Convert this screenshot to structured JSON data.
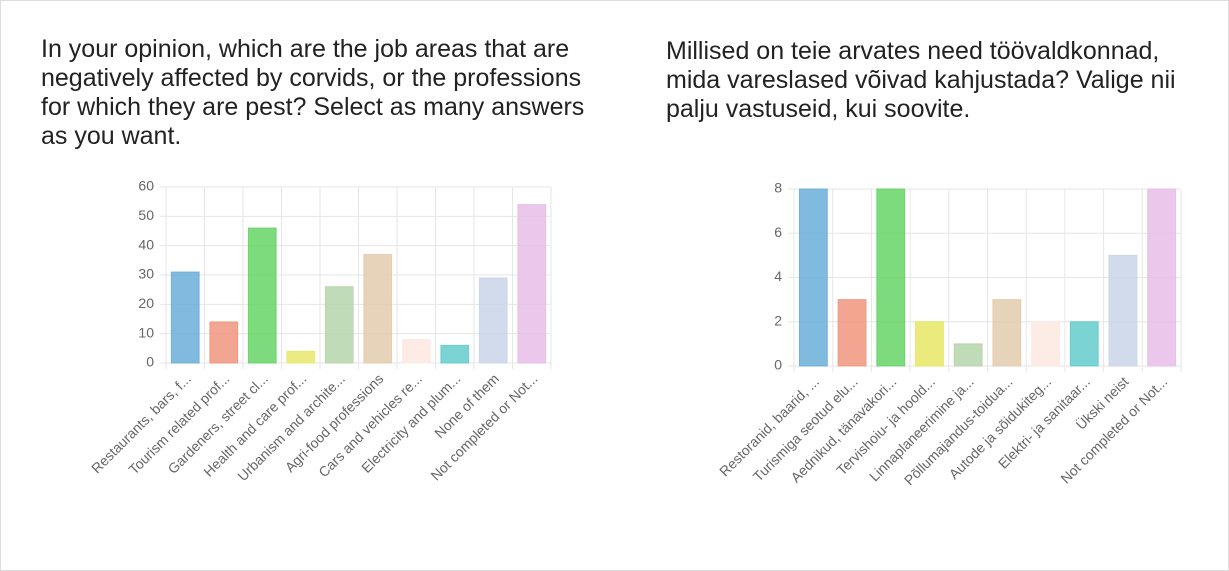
{
  "chart_data": [
    {
      "type": "bar",
      "title": "In your opinion, which are the job areas that are negatively affected by corvids, or the professions for which they are pest? Select as many answers as you want.",
      "categories": [
        "Restaurants, bars, f...",
        "Tourism related prof...",
        "Gardeners, street cl...",
        "Health and care prof...",
        "Urbanism and archite...",
        "Agri-food professions",
        "Cars and vehicles re...",
        "Electricity and plum...",
        "None of them",
        "Not completed or Not..."
      ],
      "values": [
        31,
        14,
        46,
        4,
        26,
        37,
        8,
        6,
        29,
        54
      ],
      "colors": [
        "#6aaed9",
        "#f0957c",
        "#66d366",
        "#e8e86c",
        "#b5d5aa",
        "#e3cbae",
        "#fde9e1",
        "#64cbcb",
        "#c9d5e8",
        "#e7bde7"
      ],
      "ylim": [
        0,
        60
      ],
      "yticks": [
        0,
        10,
        20,
        30,
        40,
        50,
        60
      ],
      "grid": true
    },
    {
      "type": "bar",
      "title": "Millised on teie arvates need töövaldkonnad, mida vareslased võivad kahjustada? Valige nii palju vastuseid, kui soovite.",
      "categories": [
        "Restoranid, baarid, ...",
        "Turismiga seotud elu...",
        "Aednikud, tänavakori...",
        "Tervishoiu- ja hoold...",
        "Linnaplaneerimine ja...",
        "Põllumajandus-toidua...",
        "Autode ja sõidukiteg...",
        "Elektri- ja sanitaar...",
        "Ükski neist",
        "Not completed or Not..."
      ],
      "values": [
        8,
        3,
        8,
        2,
        1,
        3,
        2,
        2,
        5,
        8
      ],
      "colors": [
        "#6aaed9",
        "#f0957c",
        "#66d366",
        "#e6e666",
        "#b5d5aa",
        "#e3cbae",
        "#fde9e1",
        "#64cbcb",
        "#c9d5e8",
        "#e7bde7"
      ],
      "ylim": [
        0,
        8
      ],
      "yticks": [
        0,
        2,
        4,
        6,
        8
      ],
      "grid": true
    }
  ]
}
